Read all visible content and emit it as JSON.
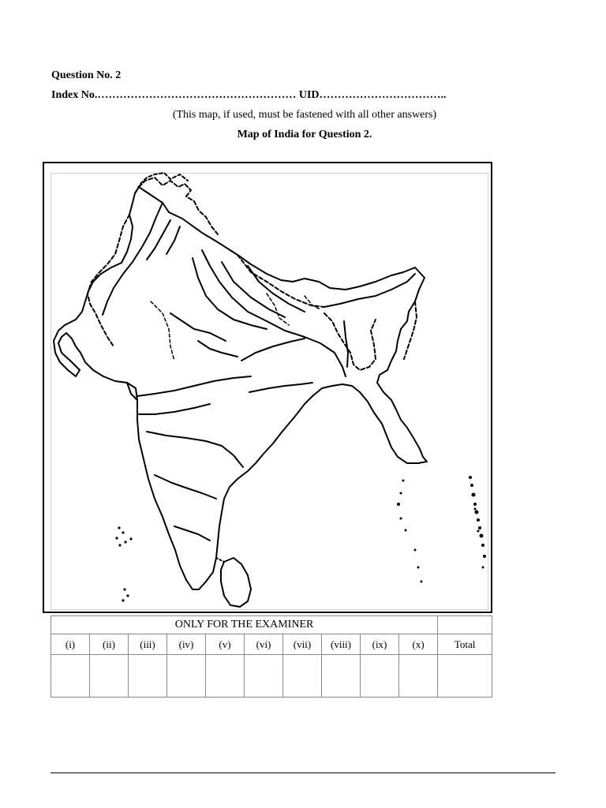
{
  "question": {
    "number_label": "Question No. 2"
  },
  "index_line": {
    "index_label": "Index No.",
    "index_dots": "………………………………………………",
    "uid_label": "UID",
    "uid_dots": "……………………………..",
    "uid_space": " "
  },
  "note": "(This map, if used, must be fastened with all other answers)",
  "map_title": "Map of India for Question 2.",
  "examiner_table": {
    "heading": "ONLY FOR THE EXAMINER",
    "columns": [
      "(i)",
      "(ii)",
      "(iii)",
      "(iv)",
      "(v)",
      "(vi)",
      "(vii)",
      "(viii)",
      "(ix)",
      "(x)"
    ],
    "total_label": "Total"
  }
}
